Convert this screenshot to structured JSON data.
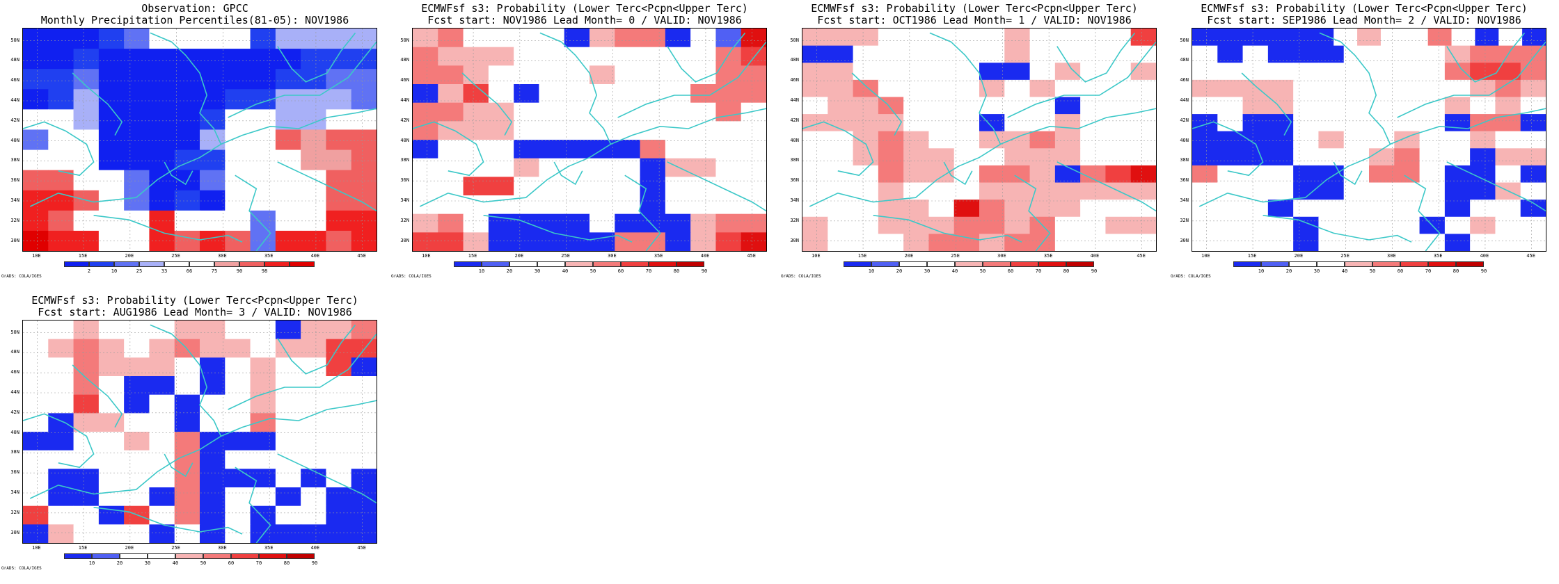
{
  "colors": {
    "coast": "#3cc8c8",
    "scale_obs": [
      "#1020f0",
      "#2040f0",
      "#6072f4",
      "#a8b0f8",
      "#ffffff",
      "#ffffff",
      "#f0a0a0",
      "#f06060",
      "#f02020",
      "#e00000"
    ],
    "scale_prob": [
      "#1a2af0",
      "#5060f4",
      "#ffffff",
      "#ffffff",
      "#f7b4b4",
      "#f47a7a",
      "#f04040",
      "#e01010",
      "#c00000"
    ]
  },
  "grid": {
    "lat_labels": [
      "50N",
      "48N",
      "46N",
      "44N",
      "42N",
      "40N",
      "38N",
      "36N",
      "34N",
      "32N",
      "30N"
    ],
    "lon_labels": [
      "10E",
      "15E",
      "20E",
      "25E",
      "30E",
      "35E",
      "40E",
      "45E"
    ]
  },
  "panels": [
    {
      "line1": "Observation: GPCC",
      "line2": "Monthly Precipitation Percentiles(81-05): NOV1986",
      "scale": "obs",
      "colorbar_labels": [
        "2",
        "10",
        "25",
        "33",
        "66",
        "75",
        "90",
        "98"
      ],
      "grads_label": "GrADS: COLA/IGES",
      "cells": [
        [
          0,
          0,
          0,
          1,
          2,
          4,
          4,
          4,
          4,
          1,
          3,
          3,
          3,
          3
        ],
        [
          0,
          0,
          1,
          0,
          0,
          0,
          0,
          0,
          0,
          0,
          0,
          1,
          1,
          1
        ],
        [
          1,
          1,
          2,
          0,
          0,
          0,
          0,
          0,
          0,
          0,
          1,
          1,
          2,
          2
        ],
        [
          0,
          1,
          3,
          0,
          0,
          0,
          0,
          0,
          1,
          1,
          3,
          3,
          3,
          2
        ],
        [
          4,
          4,
          3,
          0,
          0,
          0,
          0,
          1,
          4,
          4,
          3,
          3,
          4,
          4
        ],
        [
          2,
          4,
          4,
          0,
          0,
          0,
          0,
          3,
          4,
          4,
          7,
          6,
          7,
          7
        ],
        [
          4,
          4,
          4,
          0,
          0,
          0,
          1,
          1,
          4,
          4,
          4,
          6,
          6,
          7
        ],
        [
          7,
          7,
          4,
          4,
          2,
          0,
          0,
          2,
          4,
          4,
          4,
          4,
          7,
          7
        ],
        [
          8,
          8,
          7,
          4,
          2,
          0,
          1,
          0,
          4,
          4,
          4,
          4,
          7,
          7
        ],
        [
          8,
          7,
          4,
          4,
          4,
          8,
          4,
          4,
          4,
          2,
          4,
          4,
          8,
          8
        ],
        [
          9,
          8,
          8,
          4,
          4,
          8,
          7,
          8,
          7,
          2,
          8,
          8,
          7,
          8
        ]
      ]
    },
    {
      "line1": "ECMWFsf s3: Probability (Lower Terc<Pcpn<Upper Terc)",
      "line2": "Fcst start: NOV1986  Lead Month= 0 / VALID: NOV1986",
      "scale": "prob",
      "colorbar_labels": [
        "10",
        "20",
        "30",
        "40",
        "50",
        "60",
        "70",
        "80",
        "90"
      ],
      "grads_label": "GrADS: COLA/IGES",
      "cells": [
        [
          4,
          5,
          2,
          2,
          2,
          2,
          0,
          4,
          5,
          5,
          0,
          2,
          1,
          7
        ],
        [
          5,
          4,
          4,
          4,
          2,
          2,
          2,
          2,
          2,
          2,
          2,
          2,
          5,
          6
        ],
        [
          5,
          5,
          4,
          2,
          2,
          2,
          2,
          4,
          2,
          2,
          2,
          2,
          5,
          5
        ],
        [
          0,
          4,
          6,
          2,
          0,
          2,
          2,
          2,
          2,
          2,
          2,
          5,
          5,
          5
        ],
        [
          5,
          5,
          4,
          4,
          2,
          2,
          2,
          2,
          2,
          2,
          2,
          2,
          5,
          2
        ],
        [
          5,
          4,
          4,
          4,
          2,
          2,
          2,
          2,
          2,
          2,
          2,
          2,
          2,
          2
        ],
        [
          0,
          2,
          2,
          2,
          0,
          0,
          0,
          0,
          0,
          5,
          2,
          2,
          2,
          2
        ],
        [
          2,
          2,
          2,
          2,
          4,
          2,
          2,
          2,
          2,
          0,
          4,
          4,
          2,
          2
        ],
        [
          2,
          2,
          6,
          6,
          2,
          2,
          2,
          2,
          2,
          0,
          2,
          2,
          2,
          2
        ],
        [
          2,
          2,
          2,
          2,
          2,
          2,
          2,
          2,
          2,
          0,
          2,
          2,
          2,
          2
        ],
        [
          4,
          5,
          2,
          0,
          0,
          0,
          0,
          2,
          0,
          0,
          0,
          4,
          5,
          5
        ],
        [
          6,
          6,
          4,
          0,
          0,
          0,
          0,
          0,
          5,
          5,
          0,
          4,
          6,
          7
        ]
      ]
    },
    {
      "line1": "ECMWFsf s3: Probability (Lower Terc<Pcpn<Upper Terc)",
      "line2": "Fcst start: OCT1986  Lead Month= 1 / VALID: NOV1986",
      "scale": "prob",
      "colorbar_labels": [
        "10",
        "20",
        "30",
        "40",
        "50",
        "60",
        "70",
        "80",
        "90"
      ],
      "grads_label": "GrADS: COLA/IGES",
      "cells": [
        [
          4,
          4,
          4,
          2,
          2,
          2,
          2,
          2,
          4,
          2,
          2,
          2,
          2,
          6
        ],
        [
          0,
          0,
          2,
          2,
          2,
          2,
          2,
          2,
          4,
          2,
          2,
          2,
          2,
          2
        ],
        [
          4,
          4,
          2,
          2,
          2,
          2,
          2,
          0,
          0,
          2,
          4,
          2,
          2,
          4
        ],
        [
          4,
          4,
          5,
          2,
          2,
          2,
          2,
          4,
          2,
          4,
          2,
          2,
          2,
          2
        ],
        [
          2,
          4,
          4,
          5,
          2,
          2,
          2,
          2,
          2,
          2,
          0,
          2,
          2,
          2
        ],
        [
          4,
          4,
          4,
          4,
          2,
          2,
          2,
          0,
          2,
          2,
          4,
          2,
          2,
          2
        ],
        [
          2,
          2,
          4,
          5,
          4,
          2,
          2,
          4,
          4,
          5,
          4,
          2,
          2,
          2
        ],
        [
          2,
          2,
          4,
          5,
          4,
          4,
          2,
          2,
          4,
          4,
          4,
          2,
          2,
          2
        ],
        [
          2,
          2,
          2,
          5,
          4,
          4,
          2,
          5,
          5,
          4,
          0,
          5,
          6,
          7
        ],
        [
          2,
          2,
          2,
          4,
          2,
          2,
          2,
          4,
          4,
          4,
          4,
          4,
          4,
          4
        ],
        [
          2,
          2,
          2,
          4,
          4,
          2,
          7,
          5,
          4,
          4,
          4,
          2,
          2,
          2
        ],
        [
          4,
          2,
          2,
          4,
          4,
          4,
          5,
          5,
          4,
          5,
          2,
          2,
          4,
          4
        ],
        [
          4,
          2,
          2,
          2,
          4,
          5,
          5,
          4,
          5,
          5,
          2,
          2,
          2,
          2
        ]
      ]
    },
    {
      "line1": "ECMWFsf s3: Probability (Lower Terc<Pcpn<Upper Terc)",
      "line2": "Fcst start: SEP1986  Lead Month= 2 / VALID: NOV1986",
      "scale": "prob",
      "colorbar_labels": [
        "10",
        "20",
        "30",
        "40",
        "50",
        "60",
        "70",
        "80",
        "90"
      ],
      "grads_label": "GrADS: COLA/IGES",
      "cells": [
        [
          0,
          0,
          0,
          0,
          0,
          0,
          2,
          4,
          2,
          2,
          5,
          2,
          0,
          2,
          0
        ],
        [
          2,
          0,
          2,
          0,
          0,
          0,
          2,
          2,
          2,
          2,
          4,
          5,
          5,
          5
        ],
        [
          2,
          2,
          2,
          2,
          2,
          2,
          2,
          2,
          2,
          2,
          5,
          6,
          6,
          5
        ],
        [
          4,
          4,
          4,
          4,
          2,
          2,
          2,
          2,
          2,
          2,
          2,
          4,
          5,
          4
        ],
        [
          2,
          2,
          4,
          4,
          2,
          2,
          2,
          2,
          2,
          2,
          4,
          2,
          4,
          2
        ],
        [
          0,
          2,
          0,
          0,
          2,
          2,
          2,
          2,
          2,
          2,
          0,
          5,
          5,
          0
        ],
        [
          0,
          0,
          0,
          0,
          2,
          4,
          2,
          2,
          4,
          2,
          2,
          4,
          2,
          2
        ],
        [
          0,
          0,
          0,
          0,
          2,
          2,
          2,
          4,
          5,
          2,
          2,
          0,
          4,
          4
        ],
        [
          5,
          2,
          2,
          2,
          0,
          0,
          2,
          5,
          5,
          2,
          0,
          0,
          2,
          0
        ],
        [
          2,
          2,
          2,
          2,
          0,
          0,
          2,
          2,
          2,
          2,
          0,
          0,
          4,
          2
        ],
        [
          2,
          2,
          2,
          0,
          2,
          2,
          2,
          2,
          2,
          2,
          0,
          2,
          2,
          0
        ],
        [
          2,
          2,
          2,
          2,
          0,
          2,
          2,
          2,
          2,
          0,
          2,
          4,
          2,
          2
        ],
        [
          2,
          2,
          2,
          2,
          0,
          2,
          2,
          2,
          2,
          2,
          0,
          2,
          2,
          2
        ]
      ]
    },
    {
      "line1": "ECMWFsf s3: Probability (Lower Terc<Pcpn<Upper Terc)",
      "line2": "Fcst start: AUG1986  Lead Month= 3 / VALID: NOV1986",
      "scale": "prob",
      "colorbar_labels": [
        "10",
        "20",
        "30",
        "40",
        "50",
        "60",
        "70",
        "80",
        "90"
      ],
      "grads_label": "GrADS: COLA/IGES",
      "cells": [
        [
          2,
          2,
          4,
          2,
          2,
          2,
          4,
          4,
          2,
          2,
          0,
          4,
          4,
          5
        ],
        [
          2,
          4,
          5,
          4,
          2,
          4,
          5,
          4,
          4,
          2,
          4,
          4,
          6,
          6
        ],
        [
          2,
          2,
          5,
          4,
          4,
          4,
          2,
          0,
          2,
          4,
          2,
          2,
          6,
          0
        ],
        [
          2,
          2,
          5,
          2,
          0,
          0,
          2,
          0,
          2,
          4,
          2,
          2,
          2,
          2
        ],
        [
          2,
          2,
          6,
          2,
          0,
          2,
          0,
          2,
          2,
          4,
          2,
          2,
          2,
          2
        ],
        [
          2,
          0,
          4,
          4,
          2,
          2,
          0,
          2,
          2,
          5,
          2,
          2,
          2,
          2
        ],
        [
          0,
          0,
          2,
          2,
          4,
          2,
          5,
          0,
          0,
          0,
          2,
          2,
          2,
          2
        ],
        [
          2,
          2,
          2,
          2,
          2,
          2,
          5,
          0,
          2,
          2,
          2,
          2,
          2,
          2
        ],
        [
          2,
          0,
          0,
          2,
          2,
          2,
          5,
          0,
          0,
          0,
          2,
          0,
          2,
          0
        ],
        [
          2,
          0,
          0,
          2,
          2,
          0,
          5,
          0,
          2,
          2,
          0,
          2,
          0,
          0
        ],
        [
          6,
          2,
          2,
          0,
          6,
          2,
          5,
          0,
          2,
          0,
          2,
          2,
          0,
          0
        ],
        [
          0,
          4,
          2,
          2,
          2,
          0,
          2,
          0,
          2,
          0,
          0,
          0,
          0,
          0
        ]
      ]
    }
  ]
}
